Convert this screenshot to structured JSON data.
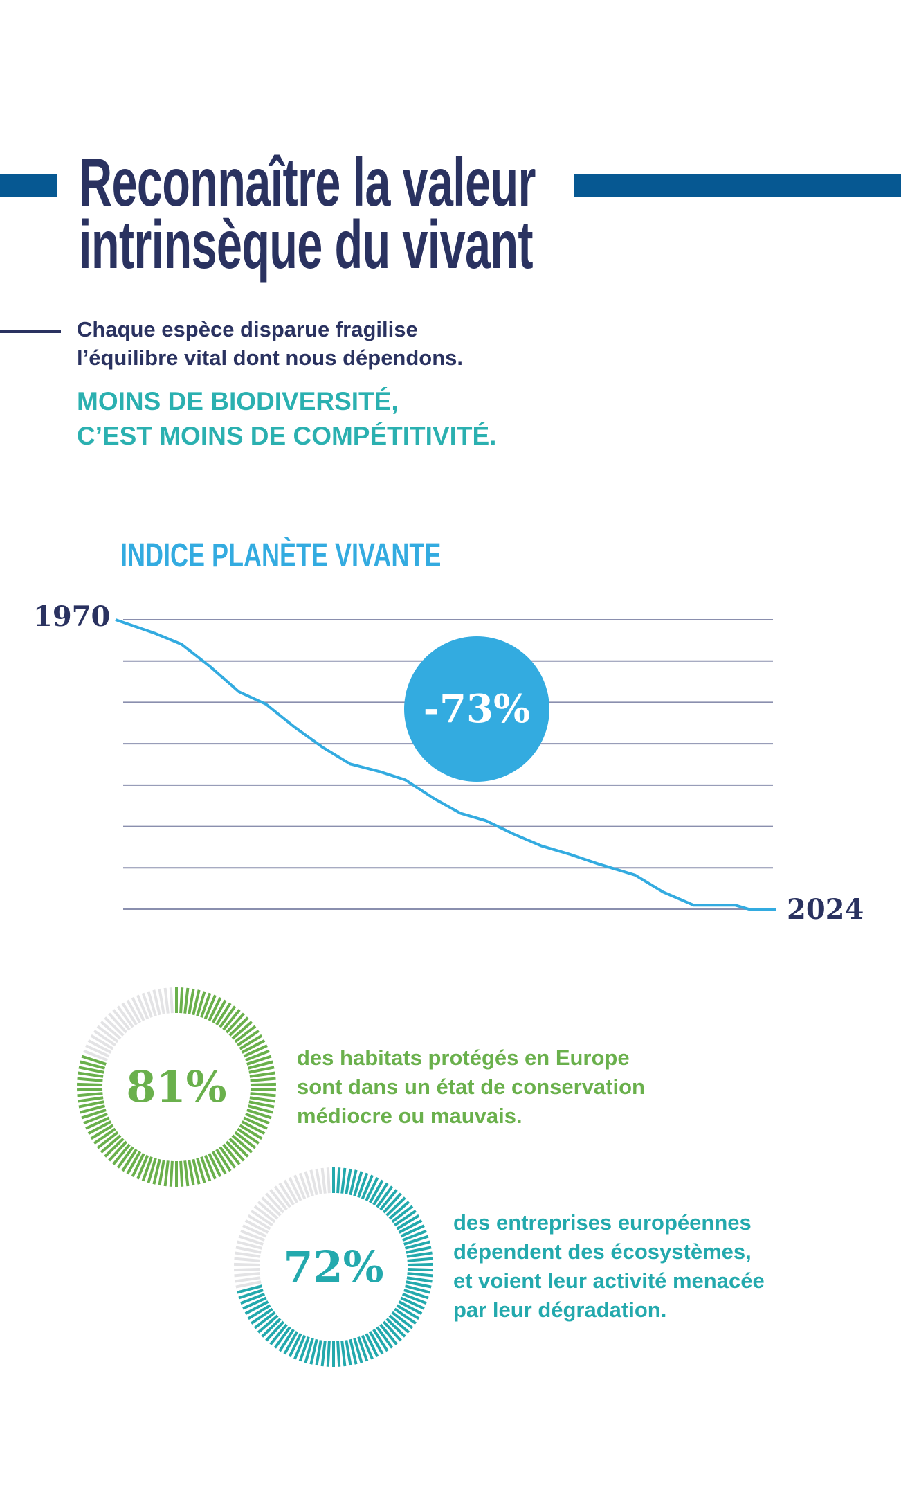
{
  "header": {
    "title_line1": "Reconnaître la valeur",
    "title_line2": "intrinsèque du vivant",
    "subtitle_line1": "Chaque espèce disparue fragilise",
    "subtitle_line2": "l’équilibre vital dont nous dépendons.",
    "tagline_line1": "MOINS DE BIODIVERSITÉ,",
    "tagline_line2": "C’EST MOINS DE COMPÉTITIVITÉ."
  },
  "colors": {
    "navy": "#2a3260",
    "blue_bar": "#065892",
    "sky": "#33abe0",
    "green": "#6ab04c",
    "teal": "#23a9ad",
    "gray": "#e3e3e5",
    "grid": "#8a8fae"
  },
  "chart_data": [
    {
      "type": "line",
      "title": "INDICE PLANÈTE VIVANTE",
      "start_label": "1970",
      "end_label": "2024",
      "badge": "-73%",
      "xlim": [
        1970,
        2024
      ],
      "ylim": [
        27,
        100
      ],
      "gridlines": 8,
      "x": [
        1970,
        1973.2,
        1975.4,
        1977.8,
        1980.1,
        1982.3,
        1984.6,
        1986.9,
        1989.2,
        1991.6,
        1993.7,
        1996.1,
        1998.2,
        2000.3,
        2002.6,
        2004.8,
        2007.1,
        2009.4,
        2012.5,
        2014.8,
        2017.3,
        2020.7,
        2021.8,
        2024
      ],
      "y": [
        100,
        96.6,
        93.8,
        88.0,
        81.8,
        78.7,
        73.0,
        67.9,
        63.6,
        61.7,
        59.6,
        54.8,
        51.2,
        49.3,
        45.9,
        43.0,
        40.9,
        38.5,
        35.6,
        31.3,
        28.0,
        28.0,
        27.0,
        27.0
      ]
    },
    {
      "type": "pie",
      "label": "81%",
      "value": 81,
      "text_lines": [
        "des habitats protégés en Europe",
        "sont dans un état de conservation",
        "médiocre ou mauvais."
      ]
    },
    {
      "type": "pie",
      "label": "72%",
      "value": 72,
      "text_lines": [
        "des entreprises européennes",
        "dépendent des écosystèmes,",
        "et voient leur activité menacée",
        "par leur dégradation."
      ]
    }
  ]
}
